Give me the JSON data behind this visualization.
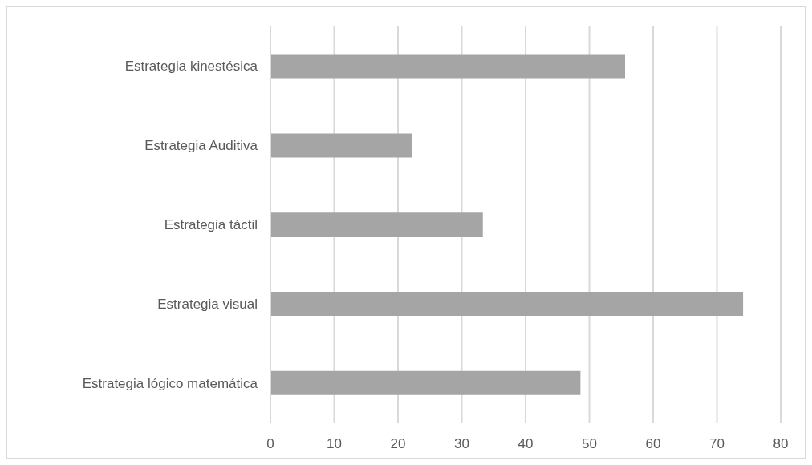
{
  "chart_data": {
    "type": "bar",
    "orientation": "horizontal",
    "categories": [
      "Estrategia kinestésica",
      "Estrategia Auditiva",
      "Estrategia táctil",
      "Estrategia visual",
      "Estrategia lógico matemática"
    ],
    "values": [
      55.6,
      22.2,
      33.3,
      74.1,
      48.6
    ],
    "color": "#a5a5a5",
    "xlim": [
      0,
      80
    ],
    "xticks": [
      0,
      10,
      20,
      30,
      40,
      50,
      60,
      70,
      80
    ],
    "grid": "x"
  }
}
